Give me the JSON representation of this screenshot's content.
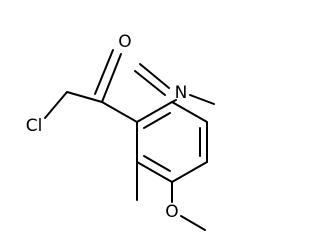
{
  "atoms": [
    {
      "label": "Cl"
    },
    {
      "label": "O"
    },
    {
      "label": "N"
    },
    {
      "label": "O"
    }
  ]
}
